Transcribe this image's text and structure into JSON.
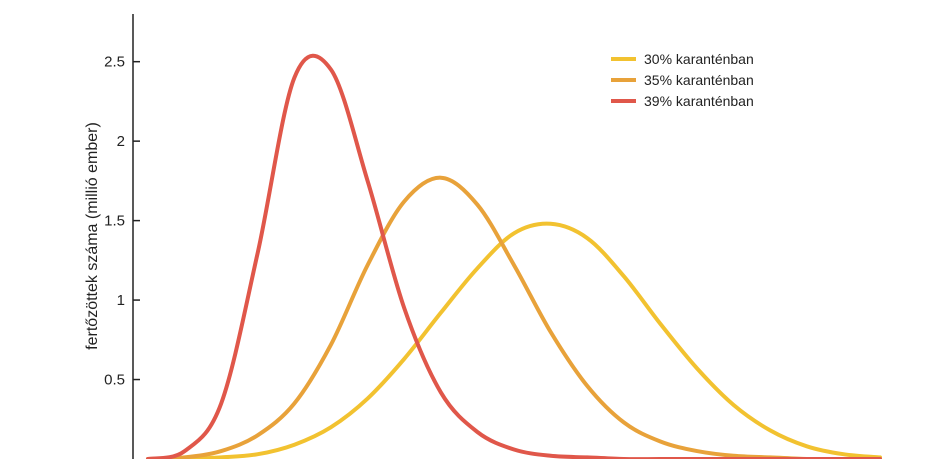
{
  "chart_data": {
    "type": "line",
    "title": "",
    "xlabel": "",
    "ylabel": "fertőzöttek száma (millió ember)",
    "ylim": [
      0,
      2.8
    ],
    "xlim": [
      0,
      100
    ],
    "yticks": [
      0.5,
      1,
      1.5,
      2,
      2.5
    ],
    "grid": false,
    "legend_position": "top-right",
    "series": [
      {
        "name": "30% karanténban",
        "color": "#F2C230",
        "x": [
          0,
          5,
          10,
          15,
          20,
          25,
          30,
          35,
          40,
          45,
          50,
          55,
          60,
          65,
          70,
          75,
          80,
          85,
          90,
          95,
          100
        ],
        "values": [
          0.0,
          0.0,
          0.01,
          0.03,
          0.09,
          0.2,
          0.38,
          0.63,
          0.92,
          1.2,
          1.42,
          1.48,
          1.39,
          1.15,
          0.85,
          0.57,
          0.34,
          0.18,
          0.08,
          0.03,
          0.01
        ]
      },
      {
        "name": "35% karanténban",
        "color": "#E8A23A",
        "x": [
          0,
          5,
          10,
          15,
          20,
          25,
          30,
          35,
          40,
          45,
          50,
          55,
          60,
          65,
          70,
          75,
          80,
          85,
          90,
          95,
          100
        ],
        "values": [
          0.0,
          0.01,
          0.05,
          0.15,
          0.35,
          0.72,
          1.22,
          1.62,
          1.77,
          1.6,
          1.22,
          0.8,
          0.46,
          0.23,
          0.11,
          0.05,
          0.02,
          0.01,
          0.0,
          0.0,
          0.0
        ]
      },
      {
        "name": "39% karanténban",
        "color": "#E0574A",
        "x": [
          0,
          5,
          10,
          15,
          20,
          25,
          30,
          35,
          40,
          45,
          50,
          55,
          60,
          65,
          70,
          75,
          80,
          85,
          90,
          95,
          100
        ],
        "values": [
          0.0,
          0.05,
          0.35,
          1.3,
          2.4,
          2.45,
          1.75,
          0.95,
          0.42,
          0.17,
          0.06,
          0.02,
          0.01,
          0.0,
          0.0,
          0.0,
          0.0,
          0.0,
          0.0,
          0.0,
          0.0
        ]
      }
    ]
  }
}
